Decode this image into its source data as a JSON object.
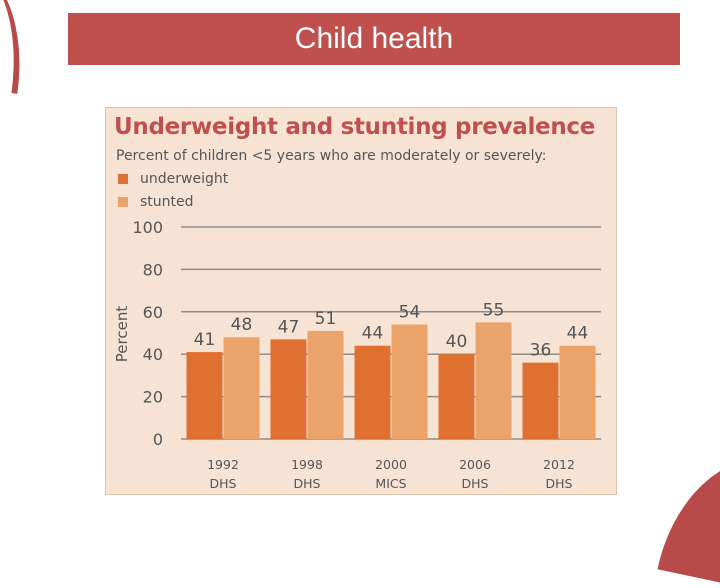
{
  "slide": {
    "title": "Child health"
  },
  "chart_data": {
    "type": "bar",
    "title": "Underweight and stunting prevalence",
    "subtitle": "Percent of children <5 years who are moderately or severely:",
    "ylabel": "Percent",
    "xlabel": "",
    "ylim": [
      0,
      100
    ],
    "yticks": [
      0,
      20,
      40,
      60,
      80,
      100
    ],
    "grid": true,
    "legend_position": "top-left",
    "categories": [
      {
        "year": "1992",
        "survey": "DHS"
      },
      {
        "year": "1998",
        "survey": "DHS"
      },
      {
        "year": "2000",
        "survey": "MICS"
      },
      {
        "year": "2006",
        "survey": "DHS"
      },
      {
        "year": "2012",
        "survey": "DHS"
      }
    ],
    "series": [
      {
        "name": "underweight",
        "color": "#e07030",
        "values": [
          41,
          47,
          44,
          40,
          36
        ]
      },
      {
        "name": "stunted",
        "color": "#eba36a",
        "values": [
          48,
          51,
          54,
          55,
          44
        ]
      }
    ]
  }
}
